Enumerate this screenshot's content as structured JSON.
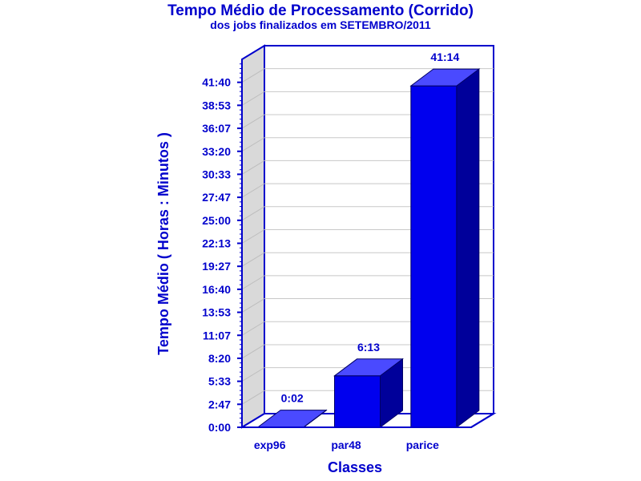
{
  "chart_data": {
    "type": "bar",
    "title": "Tempo Médio de Processamento (Corrido)",
    "subtitle": "dos jobs finalizados em SETEMBRO/2011",
    "xlabel": "Classes",
    "ylabel": "Tempo Médio ( Horas : Minutos )",
    "categories": [
      "exp96",
      "par48",
      "parice"
    ],
    "values": [
      0.0333,
      6.2167,
      41.2333
    ],
    "value_labels": [
      "0:02",
      "6:13",
      "41:14"
    ],
    "ylim": [
      0,
      44.444
    ],
    "y_ticks": [
      0,
      2.778,
      5.556,
      8.333,
      11.111,
      13.889,
      16.667,
      19.444,
      22.222,
      25.0,
      27.778,
      30.556,
      33.333,
      36.111,
      38.889,
      41.667
    ],
    "y_tick_labels": [
      "0:00",
      "2:47",
      "5:33",
      "8:20",
      "11:07",
      "13:53",
      "16:40",
      "19:27",
      "22:13",
      "25:00",
      "27:47",
      "30:33",
      "33:20",
      "36:07",
      "38:53",
      "41:40"
    ],
    "grid": true,
    "style": "3d",
    "colors": {
      "text": "#0000cc",
      "bar_front": "#0000ee",
      "bar_top": "#4a4aff",
      "bar_side": "#00009a",
      "wall": "#d9d9d9",
      "grid": "#c8c8c8",
      "axis": "#0000cc"
    }
  }
}
